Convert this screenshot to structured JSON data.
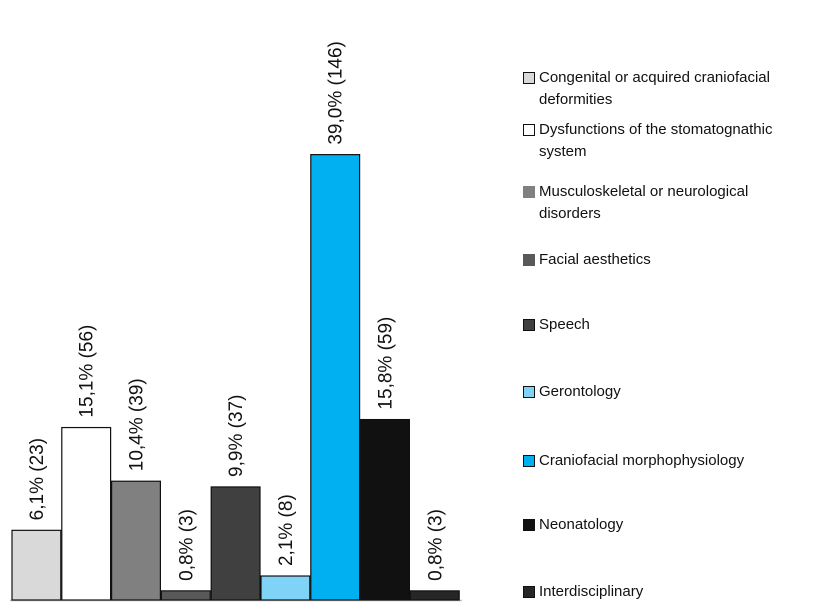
{
  "chart_data": {
    "type": "bar",
    "categories": [
      "Congenital or acquired craniofacial deformities",
      "Dysfunctions of the stomatognathic system",
      "Musculoskeletal or neurological disorders",
      "Facial aesthetics",
      "Speech",
      "Gerontology",
      "Craniofacial morphophysiology",
      "Neonatology",
      "Interdisciplinary"
    ],
    "values": [
      6.1,
      15.1,
      10.4,
      0.8,
      9.9,
      2.1,
      39.0,
      15.8,
      0.8
    ],
    "value_labels": [
      "6,1% (23)",
      "15,1% (56)",
      "10,4% (39)",
      "0,8% (3)",
      "9,9% (37)",
      "2,1% (8)",
      "39,0% (146)",
      "15,8% (59)",
      "0,8% (3)"
    ],
    "colors": [
      "#d9d9d9",
      "#ffffff",
      "#808080",
      "#595959",
      "#404040",
      "#7fd3f7",
      "#00b0f0",
      "#111111",
      "#262626"
    ],
    "legend": "right"
  }
}
